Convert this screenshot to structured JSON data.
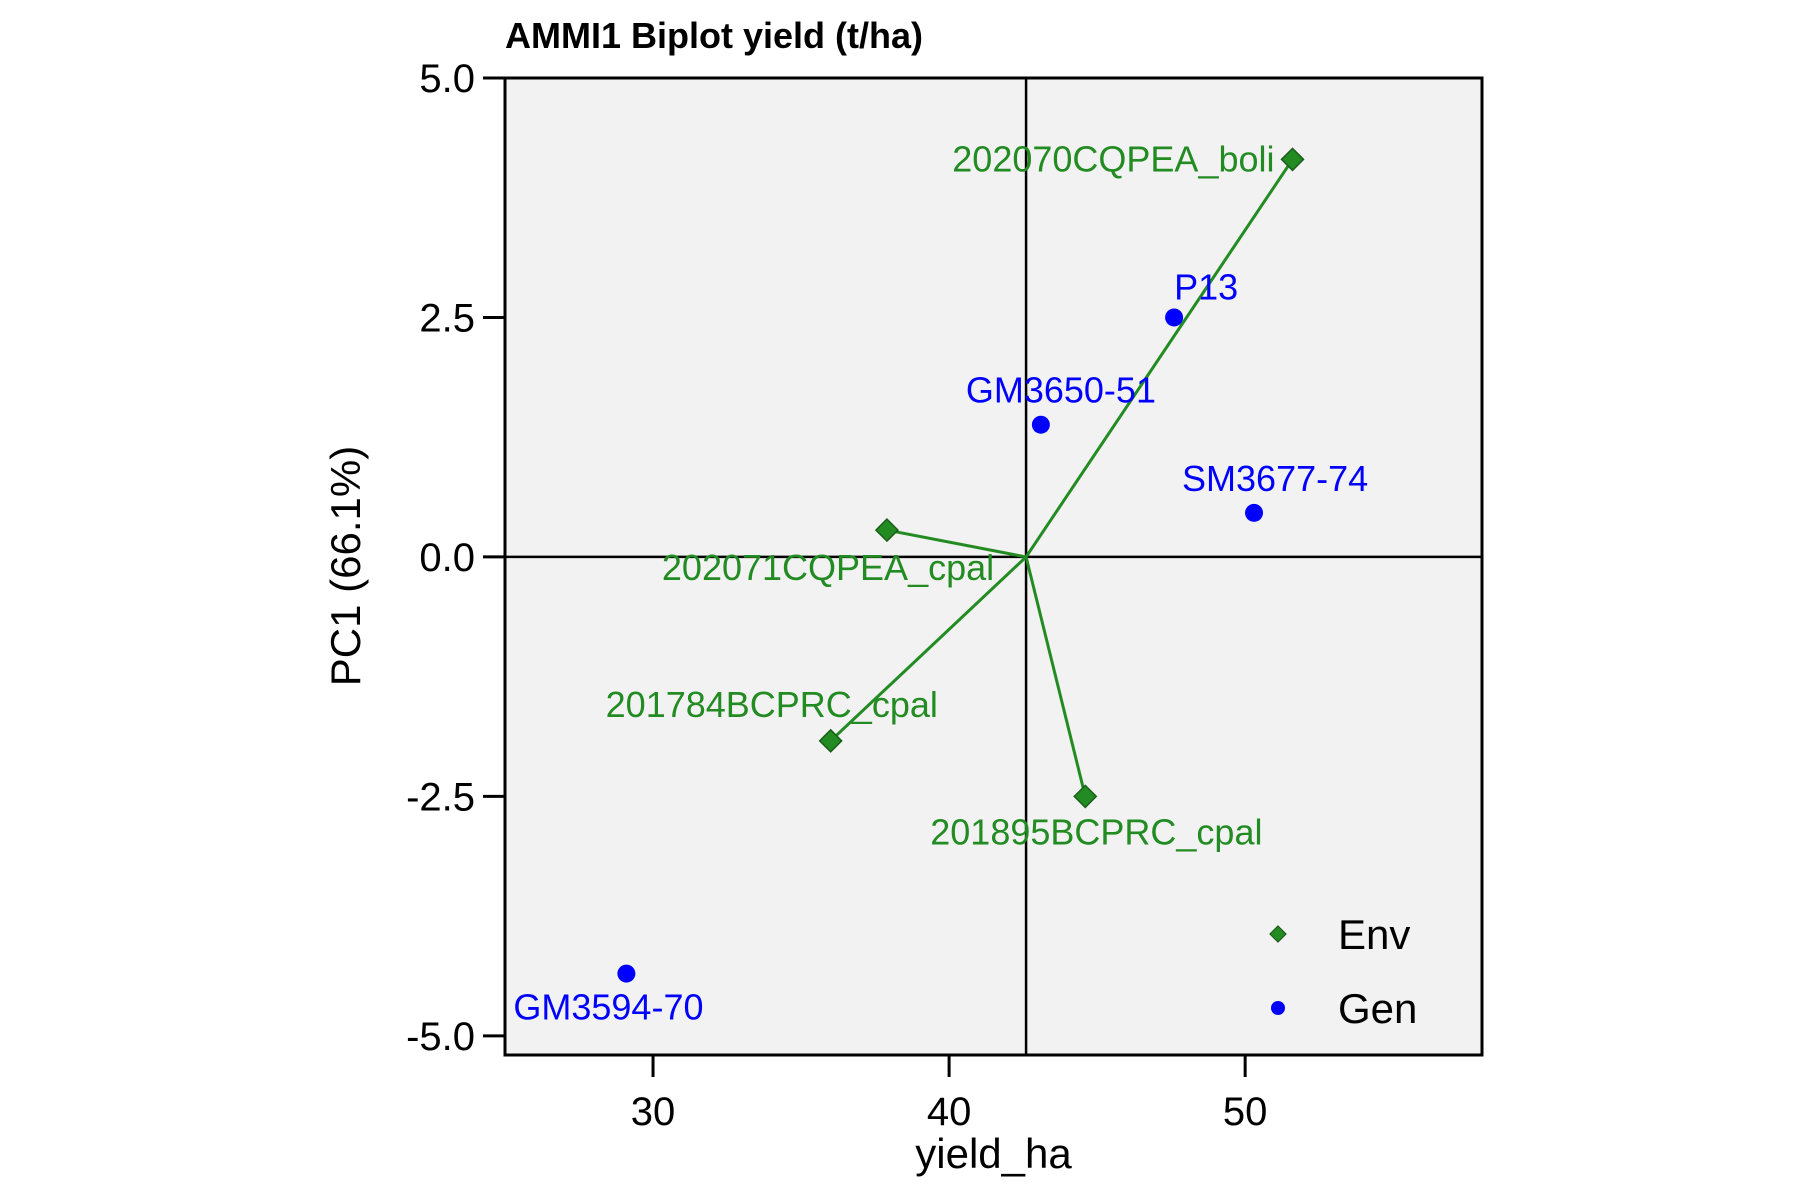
{
  "chart_data": {
    "type": "scatter",
    "title": "AMMI1 Biplot yield (t/ha)",
    "xlabel": "yield_ha",
    "ylabel": "PC1 (66.1%)",
    "xlim": [
      25,
      58
    ],
    "ylim": [
      -5.2,
      5.0
    ],
    "xticks": [
      30,
      40,
      50
    ],
    "yticks": [
      5.0,
      2.5,
      0.0,
      -2.5,
      -5.0
    ],
    "xtick_labels": [
      "30",
      "40",
      "50"
    ],
    "ytick_labels": [
      "5.0",
      "2.5",
      "0.0",
      "-2.5",
      "-5.0"
    ],
    "grand_mean_x": 42.6,
    "origin_y": 0.0,
    "grid": false,
    "legend_position": "bottom-right",
    "colors": {
      "env": "#228B22",
      "gen": "#0000FF",
      "panel": "#F2F2F2"
    },
    "series": [
      {
        "name": "Env",
        "marker": "diamond",
        "points": [
          {
            "label": "202070CQPEA_boli",
            "x": 51.6,
            "y": 4.15
          },
          {
            "label": "202071CQPEA_cpal",
            "x": 37.9,
            "y": 0.28
          },
          {
            "label": "201784BCPRC_cpal",
            "x": 36.0,
            "y": -1.92
          },
          {
            "label": "201895BCPRC_cpal",
            "x": 44.6,
            "y": -2.5
          }
        ]
      },
      {
        "name": "Gen",
        "marker": "circle",
        "points": [
          {
            "label": "P13",
            "x": 47.6,
            "y": 2.5
          },
          {
            "label": "GM3650-51",
            "x": 43.1,
            "y": 1.38
          },
          {
            "label": "SM3677-74",
            "x": 50.3,
            "y": 0.46
          },
          {
            "label": "GM3594-70",
            "x": 29.1,
            "y": -4.35
          }
        ]
      }
    ]
  }
}
